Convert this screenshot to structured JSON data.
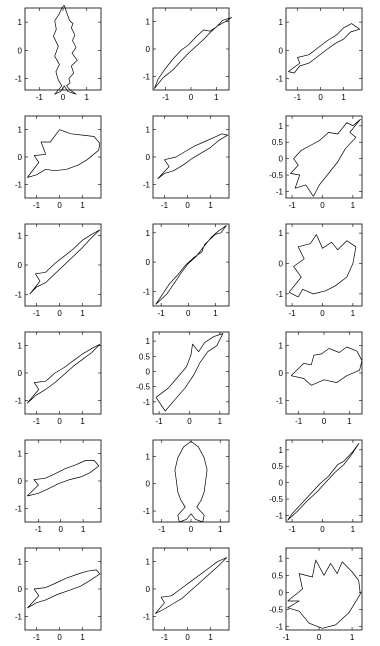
{
  "chart_data": [
    {
      "type": "line",
      "shape": "fish-vertical-head-up",
      "xlim": [
        -1.6,
        1.6
      ],
      "ylim": [
        -1.4,
        1.5
      ],
      "xticks": [
        "-1",
        "0",
        "1"
      ],
      "yticks": [
        "-1",
        "0",
        "1"
      ],
      "x": [
        0.05,
        0.15,
        0.28,
        0.42,
        0.35,
        0.5,
        0.4,
        0.55,
        0.38,
        0.6,
        0.35,
        0.45,
        0.25,
        0.3,
        0.15,
        0.3,
        0.55,
        0.2,
        0.05,
        -0.1,
        -0.35,
        -0.05,
        -0.2,
        -0.3,
        -0.15,
        -0.35,
        -0.2,
        -0.4,
        -0.28,
        -0.35,
        -0.15,
        -0.05,
        0.05
      ],
      "y": [
        1.6,
        1.35,
        1.05,
        0.95,
        0.8,
        0.55,
        0.35,
        0.1,
        -0.1,
        -0.35,
        -0.55,
        -0.8,
        -1.0,
        -1.15,
        -1.25,
        -1.4,
        -1.55,
        -1.45,
        -1.25,
        -1.45,
        -1.55,
        -1.25,
        -1.05,
        -0.75,
        -0.5,
        -0.2,
        0.15,
        0.5,
        0.75,
        1.05,
        1.3,
        1.5,
        1.6
      ]
    },
    {
      "type": "line",
      "shape": "fish-diagonal",
      "xlim": [
        -1.5,
        1.5
      ],
      "ylim": [
        -1.5,
        1.5
      ],
      "xticks": [
        "-1",
        "0",
        "1"
      ],
      "yticks": [
        "-1",
        "0",
        "1"
      ],
      "x": [
        -1.45,
        -1.1,
        -0.7,
        -0.35,
        -0.1,
        0.2,
        0.5,
        0.75,
        1.05,
        1.35,
        1.6,
        1.25,
        1.0,
        0.75,
        0.5,
        0.2,
        -0.1,
        -0.4,
        -0.7,
        -1.0,
        -1.3,
        -1.45
      ],
      "y": [
        -1.45,
        -1.05,
        -0.75,
        -0.4,
        -0.15,
        0.1,
        0.35,
        0.6,
        0.85,
        1.0,
        1.15,
        1.05,
        0.8,
        0.65,
        0.7,
        0.45,
        0.15,
        -0.05,
        -0.35,
        -0.7,
        -1.1,
        -1.45
      ]
    },
    {
      "type": "line",
      "shape": "fish-diagonal",
      "xlim": [
        -1.5,
        1.8
      ],
      "ylim": [
        -1.4,
        1.5
      ],
      "xticks": [
        "-1",
        "0",
        "1"
      ],
      "yticks": [
        "-1",
        "0",
        "1"
      ],
      "x": [
        -1.4,
        -0.9,
        -1.0,
        -0.5,
        -0.1,
        0.3,
        0.7,
        1.0,
        1.35,
        1.7,
        1.3,
        1.0,
        0.65,
        0.3,
        -0.1,
        -0.5,
        -0.9,
        -1.15,
        -1.4
      ],
      "y": [
        -0.75,
        -0.45,
        -0.25,
        -0.15,
        0.1,
        0.35,
        0.55,
        0.8,
        0.95,
        0.75,
        0.65,
        0.4,
        0.25,
        0.05,
        -0.2,
        -0.45,
        -0.55,
        -0.8,
        -0.75
      ]
    },
    {
      "type": "line",
      "shape": "fish-horizontal",
      "xlim": [
        -1.5,
        1.8
      ],
      "ylim": [
        -1.5,
        1.5
      ],
      "xticks": [
        "-1",
        "0",
        "1"
      ],
      "yticks": [
        "-1",
        "0",
        "1"
      ],
      "x": [
        -1.4,
        -0.9,
        -1.1,
        -0.6,
        -0.8,
        -0.4,
        0.0,
        0.5,
        1.0,
        1.5,
        1.75,
        1.7,
        1.2,
        0.8,
        0.3,
        -0.2,
        -0.6,
        -1.0,
        -1.4
      ],
      "y": [
        -0.75,
        -0.2,
        0.05,
        0.1,
        0.55,
        0.55,
        1.0,
        0.85,
        0.8,
        0.75,
        0.5,
        0.25,
        -0.1,
        -0.3,
        -0.45,
        -0.5,
        -0.45,
        -0.65,
        -0.75
      ]
    },
    {
      "type": "line",
      "shape": "fish-diagonal",
      "xlim": [
        -1.5,
        1.8
      ],
      "ylim": [
        -1.5,
        1.5
      ],
      "xticks": [
        "-1",
        "0",
        "1"
      ],
      "yticks": [
        "-1",
        "0",
        "1"
      ],
      "x": [
        -1.3,
        -0.8,
        -1.0,
        -0.5,
        -0.1,
        0.3,
        0.7,
        1.1,
        1.5,
        1.75,
        1.35,
        1.0,
        0.6,
        0.2,
        -0.2,
        -0.6,
        -1.0,
        -1.3
      ],
      "y": [
        -0.8,
        -0.35,
        -0.1,
        0.0,
        0.2,
        0.4,
        0.55,
        0.7,
        0.85,
        0.8,
        0.6,
        0.35,
        0.15,
        -0.05,
        -0.3,
        -0.5,
        -0.6,
        -0.8
      ]
    },
    {
      "type": "line",
      "shape": "wide-body-spiked",
      "xlim": [
        -1.2,
        1.3
      ],
      "ylim": [
        -1.2,
        1.3
      ],
      "xticks": [
        "-1",
        "0",
        "1"
      ],
      "yticks": [
        "-1",
        "-0.5",
        "0",
        "0.5",
        "1"
      ],
      "x": [
        -0.3,
        -0.1,
        0.2,
        0.5,
        0.75,
        1.1,
        0.9,
        1.25,
        1.0,
        0.8,
        0.5,
        0.2,
        -0.1,
        -0.4,
        -0.7,
        -0.95,
        -0.8,
        -1.05,
        -0.75,
        -0.9,
        -0.55,
        -0.3
      ],
      "y": [
        -1.15,
        -0.8,
        -0.45,
        -0.1,
        0.3,
        0.65,
        0.8,
        1.2,
        1.0,
        1.1,
        0.75,
        0.8,
        0.55,
        0.4,
        0.25,
        0.0,
        -0.2,
        -0.45,
        -0.5,
        -0.9,
        -0.8,
        -1.15
      ]
    },
    {
      "type": "line",
      "shape": "fish-diagonal",
      "xlim": [
        -1.5,
        1.8
      ],
      "ylim": [
        -1.4,
        1.4
      ],
      "xticks": [
        "-1",
        "0",
        "1"
      ],
      "yticks": [
        "-1",
        "0",
        "1"
      ],
      "x": [
        -1.3,
        -0.85,
        -1.05,
        -0.6,
        -0.2,
        0.2,
        0.6,
        1.0,
        1.4,
        1.75,
        1.35,
        1.0,
        0.6,
        0.2,
        -0.2,
        -0.6,
        -1.0,
        -1.3
      ],
      "y": [
        -1.0,
        -0.55,
        -0.3,
        -0.25,
        0.05,
        0.3,
        0.55,
        0.85,
        1.05,
        1.2,
        0.9,
        0.6,
        0.3,
        0.0,
        -0.3,
        -0.6,
        -0.75,
        -1.0
      ]
    },
    {
      "type": "line",
      "shape": "fish-diagonal",
      "xlim": [
        -1.3,
        1.5
      ],
      "ylim": [
        -1.5,
        1.3
      ],
      "xticks": [
        "-1",
        "0",
        "1"
      ],
      "yticks": [
        "-1",
        "0",
        "1"
      ],
      "x": [
        -1.2,
        -0.8,
        -0.5,
        -0.25,
        0.0,
        0.3,
        0.55,
        0.85,
        1.1,
        1.4,
        1.2,
        1.0,
        0.6,
        0.5,
        0.2,
        -0.1,
        -0.4,
        -0.7,
        -0.95,
        -1.2
      ],
      "y": [
        -1.45,
        -1.1,
        -0.7,
        -0.35,
        -0.05,
        0.2,
        0.5,
        0.85,
        1.05,
        1.25,
        1.0,
        0.95,
        0.6,
        0.35,
        0.15,
        -0.1,
        -0.45,
        -0.75,
        -1.1,
        -1.45
      ]
    },
    {
      "type": "line",
      "shape": "wide-body-spiked",
      "xlim": [
        -1.2,
        1.3
      ],
      "ylim": [
        -1.4,
        1.3
      ],
      "xticks": [
        "-1",
        "0",
        "1"
      ],
      "yticks": [
        "-1",
        "0",
        "1"
      ],
      "x": [
        -1.1,
        -0.7,
        -0.95,
        -0.6,
        -0.8,
        -0.4,
        -0.2,
        0.0,
        0.3,
        0.5,
        0.8,
        1.1,
        1.0,
        0.8,
        0.4,
        0.1,
        -0.3,
        -0.65,
        -0.8,
        -1.1
      ],
      "y": [
        -0.95,
        -0.45,
        -0.1,
        0.15,
        0.55,
        0.65,
        0.95,
        0.5,
        0.7,
        0.45,
        0.75,
        0.55,
        0.0,
        -0.45,
        -0.75,
        -0.9,
        -1.0,
        -0.85,
        -1.1,
        -0.95
      ]
    },
    {
      "type": "line",
      "shape": "fish-diagonal",
      "xlim": [
        -1.5,
        1.8
      ],
      "ylim": [
        -1.5,
        1.5
      ],
      "xticks": [
        "-1",
        "0",
        "1"
      ],
      "yticks": [
        "-1",
        "0",
        "1"
      ],
      "x": [
        -1.4,
        -0.9,
        -1.1,
        -0.6,
        -0.2,
        0.2,
        0.6,
        1.0,
        1.4,
        1.75,
        1.4,
        1.0,
        0.6,
        0.2,
        -0.2,
        -0.6,
        -1.0,
        -1.4
      ],
      "y": [
        -1.1,
        -0.6,
        -0.35,
        -0.3,
        0.0,
        0.2,
        0.45,
        0.7,
        0.9,
        1.05,
        0.75,
        0.5,
        0.25,
        -0.05,
        -0.35,
        -0.6,
        -0.8,
        -1.1
      ]
    },
    {
      "type": "line",
      "shape": "fish-diagonal",
      "xlim": [
        -1.2,
        1.3
      ],
      "ylim": [
        -1.4,
        1.3
      ],
      "xticks": [
        "-1",
        "0",
        "1"
      ],
      "yticks": [
        "-1",
        "-0.5",
        "0",
        "0.5",
        "1"
      ],
      "x": [
        -1.1,
        -0.7,
        -0.4,
        -0.1,
        0.05,
        0.1,
        0.3,
        0.5,
        0.8,
        1.1,
        0.9,
        0.6,
        0.35,
        0.15,
        -0.15,
        -0.5,
        -0.8,
        -1.1
      ],
      "y": [
        -0.85,
        -0.55,
        -0.2,
        0.15,
        0.55,
        0.9,
        0.65,
        0.95,
        1.15,
        1.25,
        0.85,
        0.65,
        0.3,
        -0.1,
        -0.55,
        -0.95,
        -1.3,
        -0.85
      ]
    },
    {
      "type": "line",
      "shape": "fish-horizontal",
      "xlim": [
        -1.5,
        1.5
      ],
      "ylim": [
        -1.5,
        1.5
      ],
      "xticks": [
        "-1",
        "0",
        "1"
      ],
      "yticks": [
        "-1",
        "0",
        "1"
      ],
      "x": [
        -1.3,
        -0.8,
        -0.5,
        -0.4,
        -0.1,
        0.2,
        0.6,
        0.9,
        1.3,
        1.5,
        1.4,
        0.9,
        0.5,
        0.0,
        -0.5,
        -0.8,
        -1.3
      ],
      "y": [
        -0.1,
        0.35,
        0.3,
        0.65,
        0.7,
        0.9,
        0.75,
        0.95,
        0.8,
        0.45,
        0.1,
        -0.1,
        -0.35,
        -0.25,
        -0.45,
        -0.2,
        -0.1
      ]
    },
    {
      "type": "line",
      "shape": "fish-horizontal",
      "xlim": [
        -1.6,
        1.8
      ],
      "ylim": [
        -1.5,
        1.5
      ],
      "xticks": [
        "-1",
        "0",
        "1"
      ],
      "yticks": [
        "-1",
        "0",
        "1"
      ],
      "x": [
        -1.5,
        -1.0,
        -1.2,
        -0.7,
        -0.3,
        0.2,
        0.7,
        1.1,
        1.5,
        1.7,
        1.3,
        0.9,
        0.4,
        -0.1,
        -0.6,
        -1.0,
        -1.5
      ],
      "y": [
        -0.55,
        -0.15,
        0.05,
        0.1,
        0.25,
        0.45,
        0.6,
        0.75,
        0.75,
        0.55,
        0.3,
        0.15,
        0.05,
        -0.1,
        -0.3,
        -0.45,
        -0.55
      ]
    },
    {
      "type": "line",
      "shape": "fish-vertical-head-up",
      "xlim": [
        -1.3,
        1.3
      ],
      "ylim": [
        -1.4,
        1.6
      ],
      "xticks": [
        "-1",
        "0",
        "1"
      ],
      "yticks": [
        "-1",
        "0",
        "1"
      ],
      "x": [
        0.0,
        0.25,
        0.45,
        0.55,
        0.5,
        0.45,
        0.35,
        0.2,
        0.45,
        0.4,
        0.15,
        0.0,
        -0.15,
        -0.4,
        -0.45,
        -0.2,
        -0.35,
        -0.45,
        -0.5,
        -0.55,
        -0.45,
        -0.25,
        0.0
      ],
      "y": [
        1.55,
        1.35,
        0.95,
        0.5,
        0.1,
        -0.3,
        -0.6,
        -0.85,
        -1.15,
        -1.4,
        -1.3,
        -1.1,
        -1.3,
        -1.4,
        -1.15,
        -0.85,
        -0.6,
        -0.3,
        0.1,
        0.5,
        0.95,
        1.35,
        1.55
      ]
    },
    {
      "type": "line",
      "shape": "fish-diagonal",
      "xlim": [
        -1.2,
        1.3
      ],
      "ylim": [
        -1.2,
        1.3
      ],
      "xticks": [
        "-1",
        "0",
        "1"
      ],
      "yticks": [
        "-1",
        "-0.5",
        "0",
        "0.5",
        "1"
      ],
      "x": [
        -1.15,
        -0.8,
        -0.5,
        -0.2,
        0.1,
        0.4,
        0.7,
        0.95,
        1.2,
        1.0,
        0.7,
        0.5,
        0.2,
        -0.1,
        -0.4,
        -0.7,
        -1.0,
        -1.15
      ],
      "y": [
        -1.15,
        -0.85,
        -0.55,
        -0.3,
        0.0,
        0.3,
        0.55,
        0.85,
        1.2,
        0.95,
        0.65,
        0.55,
        0.2,
        -0.05,
        -0.35,
        -0.65,
        -0.95,
        -1.15
      ]
    },
    {
      "type": "line",
      "shape": "fish-horizontal",
      "xlim": [
        -1.5,
        1.8
      ],
      "ylim": [
        -1.5,
        1.5
      ],
      "xticks": [
        "-1",
        "0",
        "1"
      ],
      "yticks": [
        "-1",
        "0",
        "1"
      ],
      "x": [
        -1.4,
        -0.9,
        -1.1,
        -0.6,
        -0.2,
        0.3,
        0.8,
        1.2,
        1.6,
        1.75,
        1.3,
        0.9,
        0.4,
        -0.1,
        -0.6,
        -1.0,
        -1.4
      ],
      "y": [
        -0.7,
        -0.25,
        0.0,
        0.05,
        0.2,
        0.4,
        0.55,
        0.65,
        0.7,
        0.55,
        0.3,
        0.1,
        -0.05,
        -0.2,
        -0.4,
        -0.5,
        -0.7
      ]
    },
    {
      "type": "line",
      "shape": "fish-diagonal",
      "xlim": [
        -1.5,
        1.8
      ],
      "ylim": [
        -1.5,
        1.5
      ],
      "xticks": [
        "-1",
        "0",
        "1"
      ],
      "yticks": [
        "-1",
        "0",
        "1"
      ],
      "x": [
        -1.4,
        -1.0,
        -1.15,
        -0.7,
        -0.3,
        0.1,
        0.5,
        0.9,
        1.3,
        1.7,
        1.35,
        0.95,
        0.55,
        0.15,
        -0.25,
        -0.65,
        -1.05,
        -1.4
      ],
      "y": [
        -0.9,
        -0.5,
        -0.3,
        -0.25,
        0.0,
        0.25,
        0.5,
        0.75,
        1.0,
        1.15,
        0.85,
        0.55,
        0.25,
        -0.05,
        -0.35,
        -0.55,
        -0.75,
        -0.9
      ]
    },
    {
      "type": "line",
      "shape": "wide-body-spiked",
      "xlim": [
        -1.0,
        1.3
      ],
      "ylim": [
        -1.1,
        1.3
      ],
      "xticks": [
        "-1",
        "0",
        "1"
      ],
      "yticks": [
        "-1",
        "-0.5",
        "0",
        "0.5",
        "1"
      ],
      "x": [
        -0.95,
        -0.5,
        -0.6,
        -0.2,
        -0.1,
        0.15,
        0.35,
        0.55,
        0.7,
        1.0,
        1.2,
        1.25,
        0.9,
        0.5,
        0.1,
        -0.3,
        -0.6,
        -0.95,
        -0.6,
        -0.95
      ],
      "y": [
        -0.25,
        0.1,
        0.55,
        0.45,
        0.95,
        0.5,
        0.85,
        0.55,
        0.9,
        0.6,
        0.35,
        -0.05,
        -0.6,
        -0.95,
        -1.05,
        -0.9,
        -0.55,
        -0.45,
        -0.25,
        -0.25
      ]
    }
  ]
}
